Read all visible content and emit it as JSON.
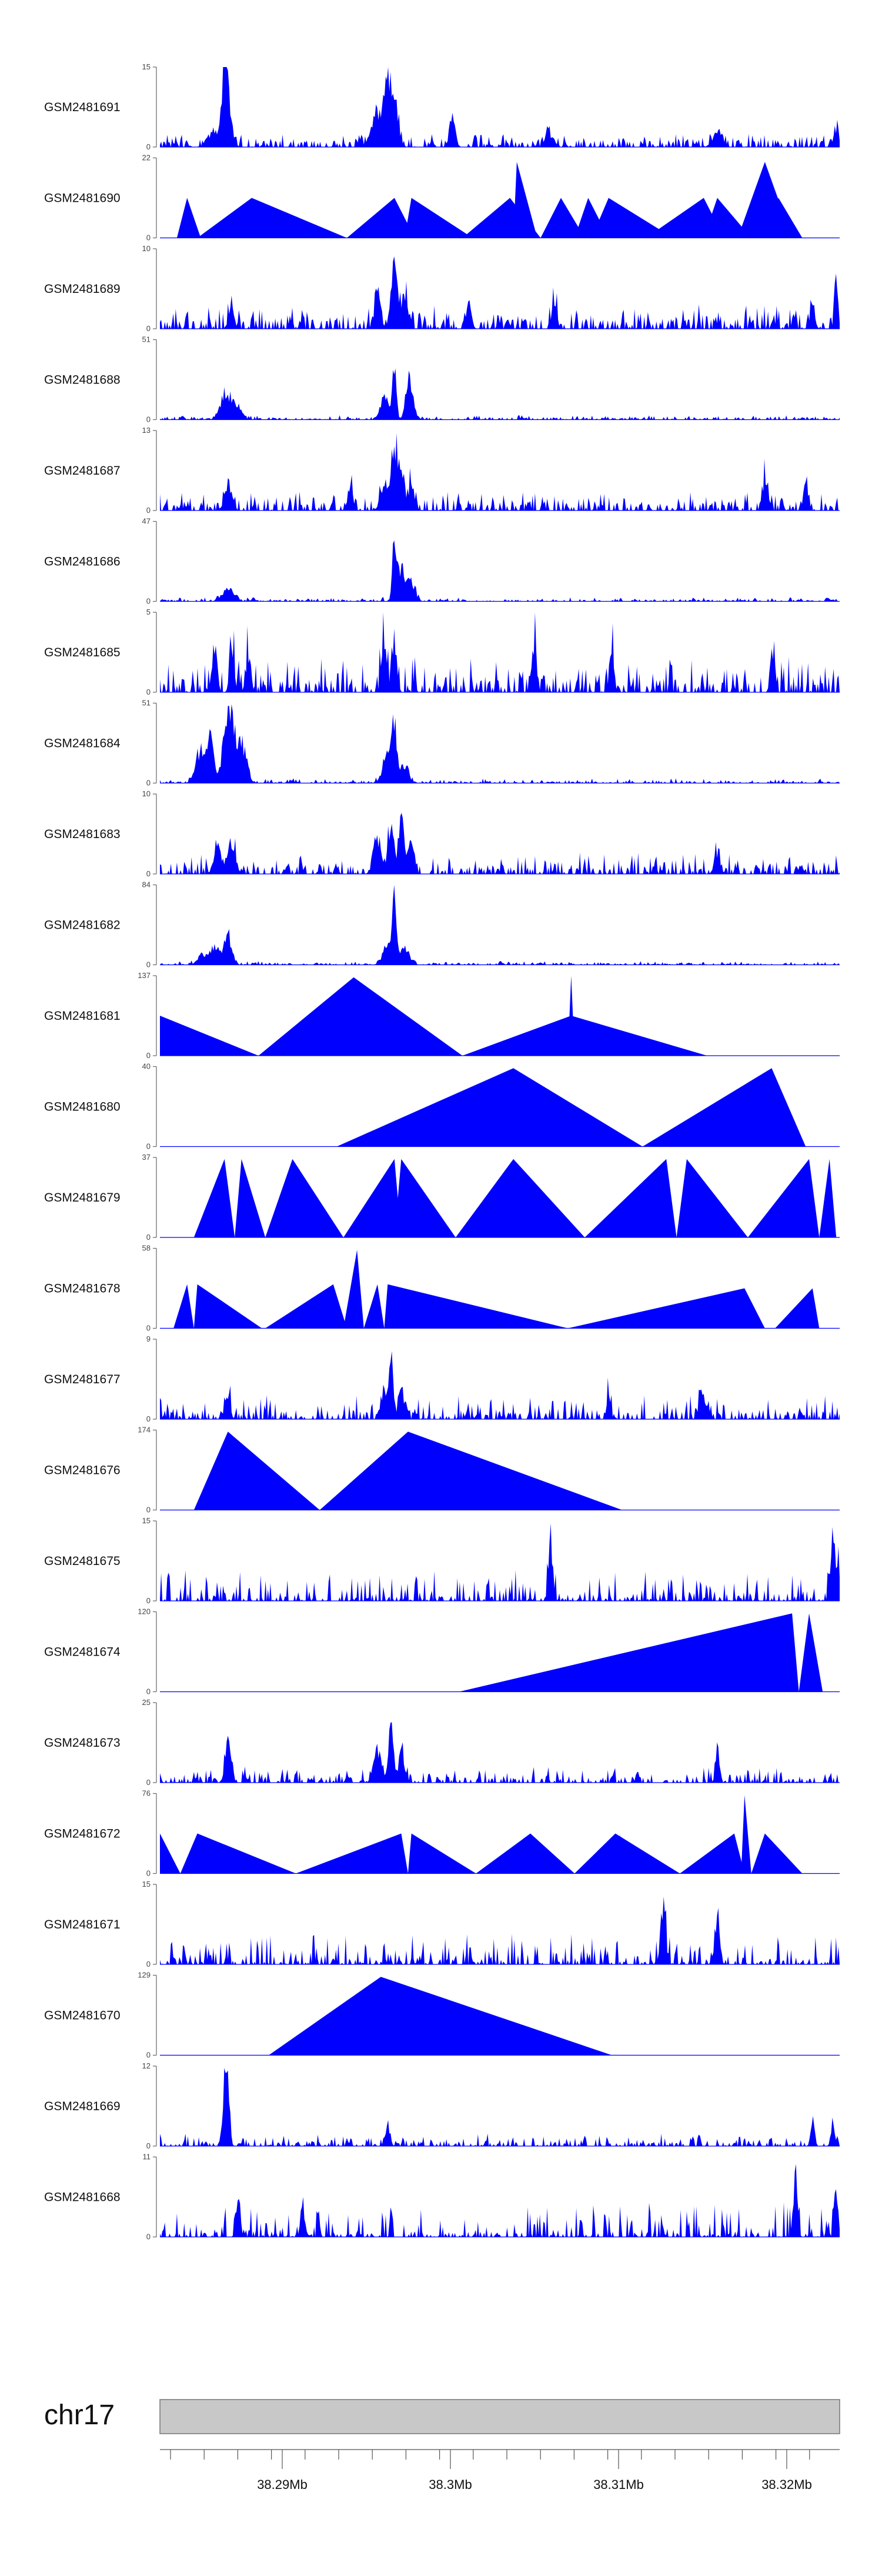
{
  "chart_data": {
    "type": "area",
    "chromosome": "chr17",
    "x_ticks": [
      "38.29Mb",
      "38.3Mb",
      "38.31Mb",
      "38.32Mb"
    ],
    "fill_color": "#0000ff",
    "tracks": [
      {
        "name": "GSM2481691",
        "ymax": "15",
        "ymin": "0",
        "style": "dense",
        "seed": 11,
        "base": 0.08,
        "noise": 0.1,
        "peaks": [
          [
            0.075,
            0.2,
            0.01
          ],
          [
            0.095,
            1.0,
            0.006
          ],
          [
            0.1,
            0.6,
            0.008
          ],
          [
            0.32,
            0.55,
            0.012
          ],
          [
            0.335,
            0.95,
            0.006
          ],
          [
            0.345,
            0.7,
            0.008
          ],
          [
            0.43,
            0.45,
            0.006
          ],
          [
            0.57,
            0.25,
            0.006
          ],
          [
            0.82,
            0.2,
            0.01
          ],
          [
            0.995,
            0.3,
            0.005
          ]
        ]
      },
      {
        "name": "GSM2481690",
        "ymax": "22",
        "ymin": "0",
        "style": "triangles",
        "tri": [
          [
            0.025,
            0.04,
            0.06,
            0.5
          ],
          [
            0.055,
            0.135,
            0.275,
            0.5
          ],
          [
            0.275,
            0.345,
            0.375,
            0.5
          ],
          [
            0.36,
            0.37,
            0.46,
            0.5
          ],
          [
            0.445,
            0.515,
            0.56,
            0.5
          ],
          [
            0.52,
            0.525,
            0.555,
            0.95
          ],
          [
            0.56,
            0.59,
            0.625,
            0.5
          ],
          [
            0.61,
            0.63,
            0.66,
            0.5
          ],
          [
            0.635,
            0.66,
            0.755,
            0.5
          ],
          [
            0.715,
            0.8,
            0.83,
            0.5
          ],
          [
            0.8,
            0.82,
            0.87,
            0.5
          ],
          [
            0.85,
            0.89,
            0.93,
            0.95
          ],
          [
            0.87,
            0.91,
            0.945,
            0.5
          ]
        ]
      },
      {
        "name": "GSM2481689",
        "ymax": "10",
        "ymin": "0",
        "style": "dense",
        "seed": 23,
        "base": 0.12,
        "noise": 0.22,
        "peaks": [
          [
            0.105,
            0.3,
            0.006
          ],
          [
            0.32,
            0.6,
            0.006
          ],
          [
            0.345,
            0.95,
            0.007
          ],
          [
            0.36,
            0.5,
            0.006
          ],
          [
            0.455,
            0.35,
            0.005
          ],
          [
            0.58,
            0.4,
            0.005
          ],
          [
            0.96,
            0.4,
            0.005
          ],
          [
            0.995,
            0.6,
            0.004
          ]
        ]
      },
      {
        "name": "GSM2481688",
        "ymax": "51",
        "ymin": "0",
        "style": "dense",
        "seed": 37,
        "base": 0.02,
        "noise": 0.04,
        "peaks": [
          [
            0.095,
            0.35,
            0.01
          ],
          [
            0.11,
            0.25,
            0.012
          ],
          [
            0.33,
            0.4,
            0.008
          ],
          [
            0.345,
            0.95,
            0.004
          ],
          [
            0.365,
            0.45,
            0.006
          ],
          [
            0.37,
            0.25,
            0.008
          ]
        ]
      },
      {
        "name": "GSM2481687",
        "ymax": "13",
        "ymin": "0",
        "style": "dense",
        "seed": 41,
        "base": 0.08,
        "noise": 0.18,
        "peaks": [
          [
            0.1,
            0.35,
            0.008
          ],
          [
            0.28,
            0.35,
            0.006
          ],
          [
            0.33,
            0.45,
            0.008
          ],
          [
            0.345,
            0.95,
            0.006
          ],
          [
            0.355,
            0.7,
            0.006
          ],
          [
            0.37,
            0.45,
            0.006
          ],
          [
            0.89,
            0.55,
            0.005
          ],
          [
            0.95,
            0.45,
            0.005
          ]
        ]
      },
      {
        "name": "GSM2481686",
        "ymax": "47",
        "ymin": "0",
        "style": "dense",
        "seed": 53,
        "base": 0.02,
        "noise": 0.04,
        "peaks": [
          [
            0.1,
            0.2,
            0.012
          ],
          [
            0.345,
            0.95,
            0.004
          ],
          [
            0.355,
            0.5,
            0.008
          ],
          [
            0.37,
            0.3,
            0.008
          ]
        ]
      },
      {
        "name": "GSM2481685",
        "ymax": "5",
        "ymin": "0",
        "style": "dense",
        "seed": 67,
        "base": 0.12,
        "noise": 0.35,
        "peaks": [
          [
            0.08,
            0.7,
            0.005
          ],
          [
            0.105,
            0.95,
            0.004
          ],
          [
            0.13,
            0.6,
            0.005
          ],
          [
            0.33,
            0.95,
            0.005
          ],
          [
            0.345,
            0.8,
            0.005
          ],
          [
            0.55,
            0.7,
            0.005
          ],
          [
            0.665,
            0.7,
            0.004
          ],
          [
            0.9,
            0.5,
            0.004
          ]
        ]
      },
      {
        "name": "GSM2481684",
        "ymax": "51",
        "ymin": "0",
        "style": "dense",
        "seed": 79,
        "base": 0.02,
        "noise": 0.04,
        "peaks": [
          [
            0.06,
            0.55,
            0.01
          ],
          [
            0.075,
            0.8,
            0.006
          ],
          [
            0.095,
            0.55,
            0.008
          ],
          [
            0.105,
            0.95,
            0.008
          ],
          [
            0.12,
            0.6,
            0.01
          ],
          [
            0.335,
            0.45,
            0.01
          ],
          [
            0.345,
            0.85,
            0.005
          ],
          [
            0.36,
            0.3,
            0.008
          ]
        ]
      },
      {
        "name": "GSM2481683",
        "ymax": "10",
        "ymin": "0",
        "style": "dense",
        "seed": 83,
        "base": 0.08,
        "noise": 0.2,
        "peaks": [
          [
            0.085,
            0.4,
            0.008
          ],
          [
            0.105,
            0.45,
            0.008
          ],
          [
            0.32,
            0.5,
            0.008
          ],
          [
            0.34,
            0.8,
            0.006
          ],
          [
            0.355,
            0.95,
            0.005
          ],
          [
            0.37,
            0.45,
            0.006
          ],
          [
            0.82,
            0.35,
            0.006
          ]
        ]
      },
      {
        "name": "GSM2481682",
        "ymax": "84",
        "ymin": "0",
        "style": "dense",
        "seed": 97,
        "base": 0.02,
        "noise": 0.03,
        "peaks": [
          [
            0.06,
            0.15,
            0.008
          ],
          [
            0.08,
            0.3,
            0.01
          ],
          [
            0.1,
            0.45,
            0.008
          ],
          [
            0.335,
            0.3,
            0.01
          ],
          [
            0.345,
            0.95,
            0.004
          ],
          [
            0.36,
            0.25,
            0.01
          ]
        ]
      },
      {
        "name": "GSM2481681",
        "ymax": "137",
        "ymin": "0",
        "style": "triangles",
        "tri": [
          [
            0.0,
            0.0,
            0.145,
            0.5
          ],
          [
            0.145,
            0.285,
            0.445,
            0.98
          ],
          [
            0.445,
            0.605,
            0.805,
            0.5
          ],
          [
            0.6,
            0.605,
            0.61,
            1.0
          ]
        ]
      },
      {
        "name": "GSM2481680",
        "ymax": "40",
        "ymin": "0",
        "style": "triangles",
        "tri": [
          [
            0.26,
            0.52,
            0.71,
            0.98
          ],
          [
            0.71,
            0.9,
            0.95,
            0.98
          ]
        ]
      },
      {
        "name": "GSM2481679",
        "ymax": "37",
        "ymin": "0",
        "style": "triangles",
        "tri": [
          [
            0.05,
            0.095,
            0.11,
            0.98
          ],
          [
            0.11,
            0.12,
            0.155,
            0.98
          ],
          [
            0.155,
            0.195,
            0.27,
            0.98
          ],
          [
            0.27,
            0.345,
            0.355,
            0.98
          ],
          [
            0.345,
            0.355,
            0.435,
            0.98
          ],
          [
            0.435,
            0.52,
            0.625,
            0.98
          ],
          [
            0.625,
            0.745,
            0.76,
            0.98
          ],
          [
            0.76,
            0.775,
            0.865,
            0.98
          ],
          [
            0.865,
            0.955,
            0.97,
            0.98
          ],
          [
            0.97,
            0.985,
            0.995,
            0.98
          ]
        ]
      },
      {
        "name": "GSM2481678",
        "ymax": "58",
        "ymin": "0",
        "style": "triangles",
        "tri": [
          [
            0.02,
            0.04,
            0.05,
            0.55
          ],
          [
            0.05,
            0.055,
            0.15,
            0.55
          ],
          [
            0.155,
            0.255,
            0.275,
            0.55
          ],
          [
            0.27,
            0.29,
            0.3,
            0.98
          ],
          [
            0.3,
            0.32,
            0.33,
            0.55
          ],
          [
            0.33,
            0.335,
            0.6,
            0.55
          ],
          [
            0.6,
            0.86,
            0.89,
            0.5
          ],
          [
            0.905,
            0.96,
            0.97,
            0.5
          ]
        ]
      },
      {
        "name": "GSM2481677",
        "ymax": "9",
        "ymin": "0",
        "style": "dense",
        "seed": 101,
        "base": 0.08,
        "noise": 0.25,
        "peaks": [
          [
            0.1,
            0.4,
            0.005
          ],
          [
            0.33,
            0.5,
            0.006
          ],
          [
            0.34,
            0.95,
            0.004
          ],
          [
            0.355,
            0.5,
            0.006
          ],
          [
            0.66,
            0.4,
            0.004
          ],
          [
            0.8,
            0.35,
            0.008
          ]
        ]
      },
      {
        "name": "GSM2481676",
        "ymax": "174",
        "ymin": "0",
        "style": "triangles",
        "tri": [
          [
            0.05,
            0.1,
            0.235,
            0.98
          ],
          [
            0.235,
            0.365,
            0.68,
            0.98
          ]
        ]
      },
      {
        "name": "GSM2481675",
        "ymax": "15",
        "ymin": "0",
        "style": "dense",
        "seed": 113,
        "base": 0.04,
        "noise": 0.35,
        "peaks": [
          [
            0.575,
            0.98,
            0.004
          ],
          [
            0.99,
            0.95,
            0.004
          ],
          [
            0.998,
            0.75,
            0.003
          ]
        ]
      },
      {
        "name": "GSM2481674",
        "ymax": "120",
        "ymin": "0",
        "style": "triangles",
        "tri": [
          [
            0.44,
            0.93,
            0.94,
            0.98
          ],
          [
            0.94,
            0.955,
            0.975,
            0.98
          ]
        ]
      },
      {
        "name": "GSM2481673",
        "ymax": "25",
        "ymin": "0",
        "style": "dense",
        "seed": 127,
        "base": 0.06,
        "noise": 0.15,
        "peaks": [
          [
            0.1,
            0.65,
            0.006
          ],
          [
            0.32,
            0.5,
            0.008
          ],
          [
            0.34,
            0.95,
            0.005
          ],
          [
            0.355,
            0.45,
            0.006
          ],
          [
            0.82,
            0.5,
            0.004
          ]
        ]
      },
      {
        "name": "GSM2481672",
        "ymax": "76",
        "ymin": "0",
        "style": "triangles",
        "tri": [
          [
            0.0,
            0.0,
            0.03,
            0.5
          ],
          [
            0.03,
            0.055,
            0.2,
            0.5
          ],
          [
            0.2,
            0.355,
            0.365,
            0.5
          ],
          [
            0.365,
            0.37,
            0.465,
            0.5
          ],
          [
            0.465,
            0.545,
            0.61,
            0.5
          ],
          [
            0.61,
            0.67,
            0.765,
            0.5
          ],
          [
            0.675,
            0.677,
            0.68,
            0.5
          ],
          [
            0.765,
            0.845,
            0.86,
            0.5
          ],
          [
            0.855,
            0.86,
            0.87,
            0.98
          ],
          [
            0.87,
            0.89,
            0.945,
            0.5
          ]
        ]
      },
      {
        "name": "GSM2481671",
        "ymax": "15",
        "ymin": "0",
        "style": "dense",
        "seed": 131,
        "base": 0.04,
        "noise": 0.35,
        "peaks": [
          [
            0.74,
            0.98,
            0.005
          ],
          [
            0.82,
            0.75,
            0.005
          ]
        ]
      },
      {
        "name": "GSM2481670",
        "ymax": "129",
        "ymin": "0",
        "style": "triangles",
        "tri": [
          [
            0.16,
            0.325,
            0.665,
            0.98
          ]
        ]
      },
      {
        "name": "GSM2481669",
        "ymax": "12",
        "ymin": "0",
        "style": "dense",
        "seed": 139,
        "base": 0.04,
        "noise": 0.12,
        "peaks": [
          [
            0.095,
            0.98,
            0.004
          ],
          [
            0.1,
            0.8,
            0.004
          ],
          [
            0.335,
            0.35,
            0.005
          ],
          [
            0.96,
            0.35,
            0.004
          ],
          [
            0.99,
            0.35,
            0.004
          ]
        ]
      },
      {
        "name": "GSM2481668",
        "ymax": "11",
        "ymin": "0",
        "style": "dense",
        "seed": 151,
        "base": 0.04,
        "noise": 0.4,
        "peaks": [
          [
            0.115,
            0.75,
            0.004
          ],
          [
            0.21,
            0.55,
            0.004
          ],
          [
            0.935,
            0.98,
            0.004
          ],
          [
            0.995,
            0.75,
            0.004
          ]
        ]
      }
    ]
  }
}
